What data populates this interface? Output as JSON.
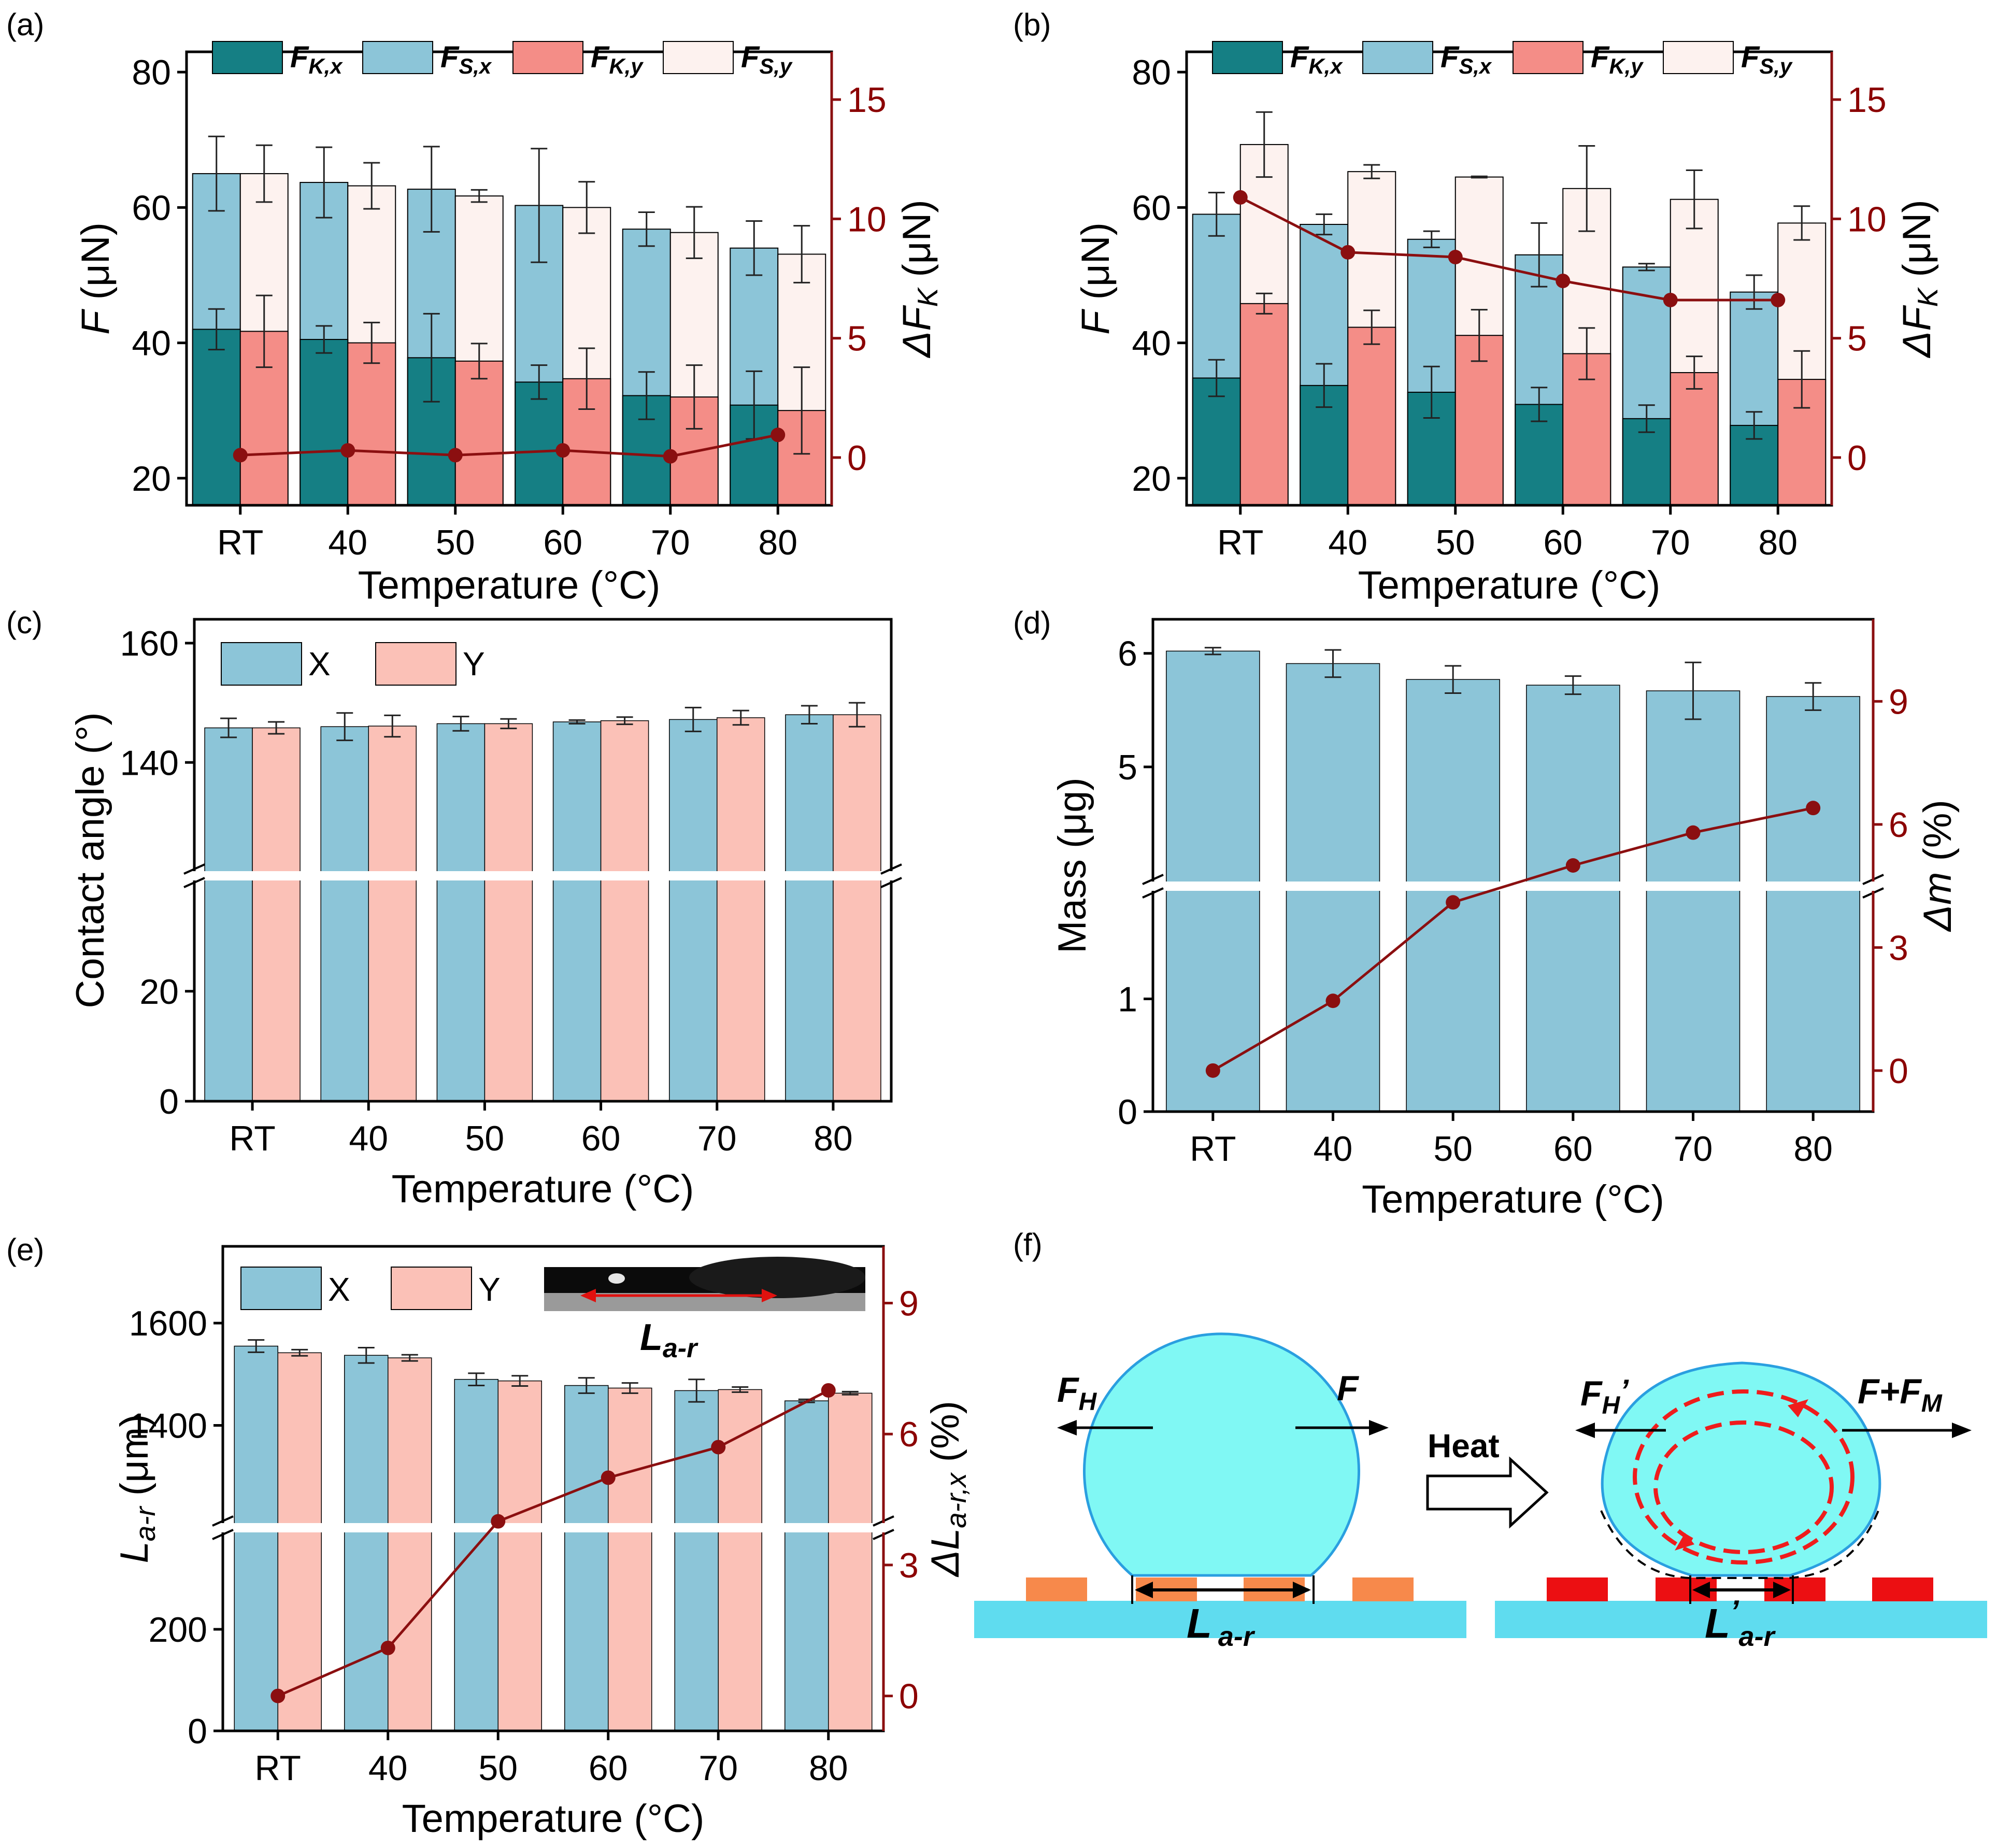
{
  "colors": {
    "teal": "#157f84",
    "lightblue": "#8cc5d8",
    "salmon": "#f48d87",
    "paleblush": "#fdf2ef",
    "pinkY": "#fbc1b7",
    "darkred": "#8b0f10",
    "cyan": "#80f8f4",
    "orangeElectrode": "#f7894b",
    "redElectrode": "#ec0f12",
    "substrate": "#5fdcef"
  },
  "chart_data": [
    {
      "panel": "(a)",
      "type": "bar",
      "categories": [
        "RT",
        "40",
        "50",
        "60",
        "70",
        "80"
      ],
      "xlabel": "Temperature (°C)",
      "ylabel": "F (μN)",
      "ylim": [
        16,
        83
      ],
      "yticks": [
        "20",
        "40",
        "60",
        "80"
      ],
      "y2label": "ΔF_K (μN)",
      "y2lim": [
        -2,
        17
      ],
      "y2ticks": [
        "0",
        "5",
        "10",
        "15"
      ],
      "legend": [
        "F_K,x",
        "F_S,x",
        "F_K,y",
        "F_S,y"
      ],
      "series": [
        {
          "name": "F_K,x",
          "values": [
            42,
            40.5,
            37.8,
            34.2,
            32.2,
            30.8
          ],
          "err": [
            3.0,
            2.0,
            6.5,
            2.5,
            3.5,
            5.0
          ]
        },
        {
          "name": "F_S,x",
          "values": [
            65,
            63.7,
            62.7,
            60.3,
            56.8,
            54.0
          ],
          "err": [
            5.5,
            5.2,
            6.3,
            8.4,
            2.5,
            4.0
          ]
        },
        {
          "name": "F_K,y",
          "values": [
            41.7,
            40.0,
            37.3,
            34.7,
            32.0,
            30.0
          ],
          "err": [
            5.3,
            3.0,
            2.6,
            4.5,
            4.7,
            6.4
          ]
        },
        {
          "name": "F_S,y",
          "values": [
            65,
            63.2,
            61.7,
            60.0,
            56.3,
            53.1
          ],
          "err": [
            4.2,
            3.4,
            0.9,
            3.8,
            3.8,
            4.2
          ]
        },
        {
          "name": "ΔF_K",
          "axis": "right",
          "values": [
            0.1,
            0.3,
            0.1,
            0.3,
            0.05,
            0.95
          ]
        }
      ]
    },
    {
      "panel": "(b)",
      "type": "bar",
      "categories": [
        "RT",
        "40",
        "50",
        "60",
        "70",
        "80"
      ],
      "xlabel": "Temperature (°C)",
      "ylabel": "F (μN)",
      "ylim": [
        16,
        83
      ],
      "yticks": [
        "20",
        "40",
        "60",
        "80"
      ],
      "y2label": "ΔF_K (μN)",
      "y2lim": [
        -2,
        17
      ],
      "y2ticks": [
        "0",
        "5",
        "10",
        "15"
      ],
      "legend": [
        "F_K,x",
        "F_S,x",
        "F_K,y",
        "F_S,y"
      ],
      "series": [
        {
          "name": "F_K,x",
          "values": [
            34.8,
            33.7,
            32.7,
            30.9,
            28.8,
            27.8
          ],
          "err": [
            2.7,
            3.2,
            3.8,
            2.5,
            2.0,
            2.0
          ]
        },
        {
          "name": "F_S,x",
          "values": [
            59,
            57.5,
            55.3,
            53.0,
            51.2,
            47.5
          ],
          "err": [
            3.2,
            1.5,
            1.2,
            4.7,
            0.5,
            2.5
          ]
        },
        {
          "name": "F_K,y",
          "values": [
            45.8,
            42.3,
            41.1,
            38.4,
            35.6,
            34.6
          ],
          "err": [
            1.5,
            2.5,
            3.8,
            3.8,
            2.4,
            4.2
          ]
        },
        {
          "name": "F_S,y",
          "values": [
            69.3,
            65.3,
            64.5,
            62.8,
            61.2,
            57.7
          ],
          "err": [
            4.8,
            1.0,
            0.1,
            6.3,
            4.3,
            2.5
          ]
        },
        {
          "name": "ΔF_K",
          "axis": "right",
          "values": [
            10.9,
            8.6,
            8.4,
            7.4,
            6.6,
            6.6
          ]
        }
      ]
    },
    {
      "panel": "(c)",
      "type": "bar",
      "categories": [
        "RT",
        "40",
        "50",
        "60",
        "70",
        "80"
      ],
      "xlabel": "Temperature (°C)",
      "ylabel": "Contact angle (°)",
      "broken_axis": true,
      "ylim_lower": [
        0,
        41
      ],
      "ylim_upper": [
        121,
        164
      ],
      "yticks": [
        "0",
        "20",
        "140",
        "160"
      ],
      "legend": [
        "X",
        "Y"
      ],
      "series": [
        {
          "name": "X",
          "values": [
            145.8,
            146.0,
            146.5,
            146.8,
            147.2,
            148.0
          ],
          "err": [
            1.6,
            2.3,
            1.2,
            0.3,
            2.0,
            1.5
          ]
        },
        {
          "name": "Y",
          "values": [
            145.8,
            146.1,
            146.5,
            147.0,
            147.5,
            148.0
          ],
          "err": [
            1.0,
            1.8,
            0.8,
            0.6,
            1.2,
            2.0
          ]
        }
      ]
    },
    {
      "panel": "(d)",
      "type": "bar",
      "categories": [
        "RT",
        "40",
        "50",
        "60",
        "70",
        "80"
      ],
      "xlabel": "Temperature (°C)",
      "ylabel": "Mass (μg)",
      "broken_axis": true,
      "ylim_lower": [
        0,
        2
      ],
      "ylim_upper": [
        3.95,
        6.3
      ],
      "yticks": [
        "0",
        "1",
        "5",
        "6"
      ],
      "y2label": "Δm (%)",
      "y2lim": [
        -1,
        11
      ],
      "y2ticks": [
        "0",
        "3",
        "6",
        "9"
      ],
      "series": [
        {
          "name": "Mass",
          "values": [
            6.02,
            5.91,
            5.77,
            5.72,
            5.67,
            5.62
          ],
          "err": [
            0.03,
            0.12,
            0.12,
            0.08,
            0.25,
            0.12
          ]
        },
        {
          "name": "Δm",
          "axis": "right",
          "values": [
            0,
            1.7,
            4.1,
            5.0,
            5.8,
            6.4
          ]
        }
      ]
    },
    {
      "panel": "(e)",
      "type": "bar",
      "categories": [
        "RT",
        "40",
        "50",
        "60",
        "70",
        "80"
      ],
      "xlabel": "Temperature (°C)",
      "ylabel": "L_a-r (μm)",
      "broken_axis": true,
      "ylim_lower": [
        0,
        400
      ],
      "ylim_upper": [
        1200,
        1750
      ],
      "yticks": [
        "0",
        "200",
        "1400",
        "1600"
      ],
      "y2label": "ΔL_a-r,x (%)",
      "y2lim": [
        -0.8,
        10.3
      ],
      "y2ticks": [
        "0",
        "3",
        "6",
        "9"
      ],
      "legend": [
        "X",
        "Y"
      ],
      "inset_label": "L_a-r",
      "series": [
        {
          "name": "X",
          "values": [
            1555,
            1537,
            1490,
            1478,
            1468,
            1448
          ],
          "err": [
            12,
            15,
            12,
            15,
            22,
            3
          ]
        },
        {
          "name": "Y",
          "values": [
            1542,
            1532,
            1487,
            1473,
            1470,
            1463
          ],
          "err": [
            6,
            6,
            10,
            10,
            5,
            3
          ]
        },
        {
          "name": "ΔL_a-r,x",
          "axis": "right",
          "values": [
            0,
            1.1,
            4.0,
            5.0,
            5.7,
            7.0
          ]
        }
      ]
    }
  ],
  "panel_f": {
    "label": "(f)",
    "left": {
      "force_h": "F",
      "force_h_sub": "H",
      "force_right": "F",
      "span_main": "L",
      "span_sub": "a-r"
    },
    "arrow_text": "Heat",
    "right": {
      "force_h": "F",
      "force_h_sub": "H",
      "force_h_prime": "’",
      "force_right": "F+F",
      "force_right_sub": "M",
      "span_main": "L",
      "span_prime": "’",
      "span_sub": "a-r"
    }
  }
}
